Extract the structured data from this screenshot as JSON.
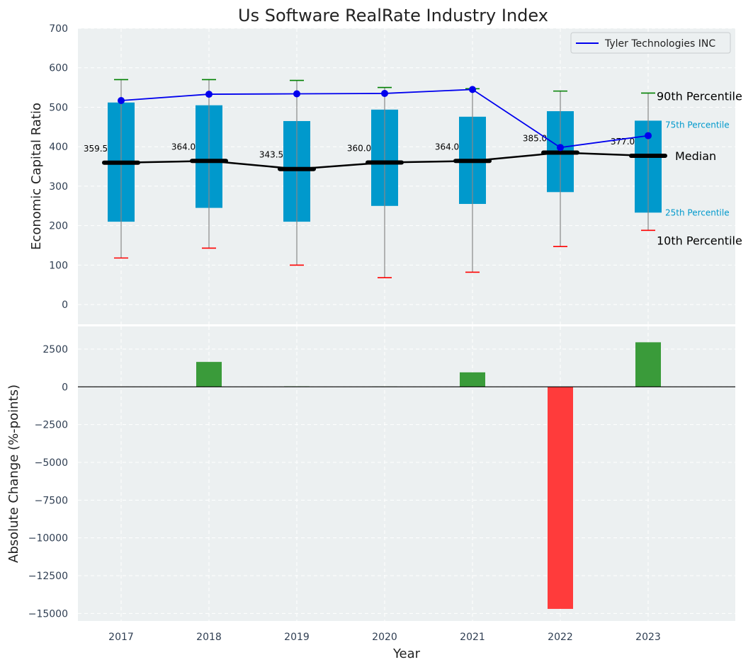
{
  "chart_data": [
    {
      "type": "box",
      "title": "Us Software RealRate Industry Index",
      "ylabel": "Economic Capital Ratio",
      "ylim": [
        -50,
        700
      ],
      "yticks": [
        0,
        100,
        200,
        300,
        400,
        500,
        600,
        700
      ],
      "categories": [
        "2017",
        "2018",
        "2019",
        "2020",
        "2021",
        "2022",
        "2023"
      ],
      "p10": [
        118,
        143,
        100,
        68,
        82,
        147,
        188
      ],
      "p25": [
        210,
        245,
        210,
        250,
        255,
        285,
        233
      ],
      "median": [
        359.5,
        364.0,
        343.5,
        360.0,
        364.0,
        385.0,
        377.0
      ],
      "median_labels": [
        "359.5",
        "364.0",
        "343.5",
        "360.0",
        "364.0",
        "385.0",
        "377.0"
      ],
      "p75": [
        512,
        505,
        465,
        494,
        476,
        490,
        466
      ],
      "p90": [
        570,
        570,
        568,
        550,
        547,
        541,
        536
      ],
      "series": [
        {
          "name": "Tyler Technologies INC",
          "values": [
            517,
            533,
            534,
            535,
            545,
            398,
            428
          ],
          "color": "#0000ee"
        }
      ],
      "annotations": {
        "p90": "90th Percentile",
        "p75": "75th Percentile",
        "median": "Median",
        "p25": "25th Percentile",
        "p10": "10th Percentile"
      },
      "legend": "top-right",
      "grid": true,
      "colors": {
        "box": "#0099cc",
        "median": "#000000",
        "p90": "#008000",
        "p10": "#ff0000",
        "background": "#ecf0f1"
      }
    },
    {
      "type": "bar",
      "ylabel": "Absolute Change (%-points)",
      "xlabel": "Year",
      "ylim": [
        -15500,
        4000
      ],
      "yticks": [
        -15000,
        -12500,
        -10000,
        -7500,
        -5000,
        -2500,
        0,
        2500
      ],
      "categories": [
        "2017",
        "2018",
        "2019",
        "2020",
        "2021",
        "2022",
        "2023"
      ],
      "values": [
        0,
        1650,
        30,
        20,
        960,
        -14700,
        2950
      ],
      "grid": true,
      "colors": {
        "positive": "#3a9b3a",
        "negative": "#ff3b3b"
      }
    }
  ]
}
